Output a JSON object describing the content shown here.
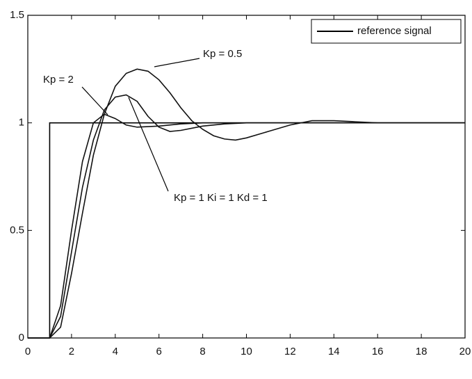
{
  "chart_data": {
    "type": "line",
    "xlim": [
      0,
      20
    ],
    "xticks": [
      0,
      2,
      4,
      6,
      8,
      10,
      12,
      14,
      16,
      18,
      20
    ],
    "ylim": [
      0,
      1.5
    ],
    "yticks": [
      0,
      0.5,
      1,
      1.5
    ],
    "legend": "upper right",
    "series": [
      {
        "name": "reference signal",
        "color": "#000000",
        "x": [
          0,
          1,
          1,
          20
        ],
        "values": [
          0,
          0,
          1,
          1
        ]
      },
      {
        "color": "#111111",
        "x": [
          0,
          1,
          1.5,
          2,
          2.5,
          3,
          3.5,
          4,
          4.5,
          5,
          6,
          7,
          8,
          10,
          12,
          14,
          16,
          18,
          20
        ],
        "values": [
          0,
          0,
          0.15,
          0.5,
          0.82,
          1.0,
          1.04,
          1.02,
          0.99,
          0.98,
          0.985,
          0.995,
          1,
          1,
          1,
          1,
          1,
          1,
          1
        ]
      },
      {
        "color": "#111111",
        "x": [
          0,
          1,
          1.5,
          2,
          2.5,
          3,
          3.5,
          4,
          4.5,
          5,
          5.5,
          6,
          6.5,
          7,
          8,
          9,
          10,
          12,
          14,
          16,
          18,
          20
        ],
        "values": [
          0,
          0,
          0.1,
          0.4,
          0.7,
          0.92,
          1.06,
          1.12,
          1.13,
          1.1,
          1.03,
          0.98,
          0.96,
          0.965,
          0.985,
          0.995,
          1,
          1,
          1,
          1,
          1,
          1
        ]
      },
      {
        "color": "#111111",
        "x": [
          0,
          1,
          1.5,
          2,
          2.5,
          3,
          3.5,
          4,
          4.5,
          5,
          5.5,
          6,
          6.5,
          7,
          7.5,
          8,
          8.5,
          9,
          9.5,
          10,
          11,
          12,
          13,
          14,
          15,
          16,
          18,
          20
        ],
        "values": [
          0,
          0,
          0.05,
          0.3,
          0.58,
          0.85,
          1.04,
          1.17,
          1.23,
          1.25,
          1.24,
          1.2,
          1.14,
          1.07,
          1.01,
          0.97,
          0.94,
          0.925,
          0.92,
          0.93,
          0.96,
          0.99,
          1.01,
          1.01,
          1.005,
          1,
          1,
          1
        ]
      }
    ],
    "annotations": [
      "Kp = 0.5",
      "Kp = 2",
      "Kp = 1  Ki = 1  Kd = 1"
    ]
  }
}
